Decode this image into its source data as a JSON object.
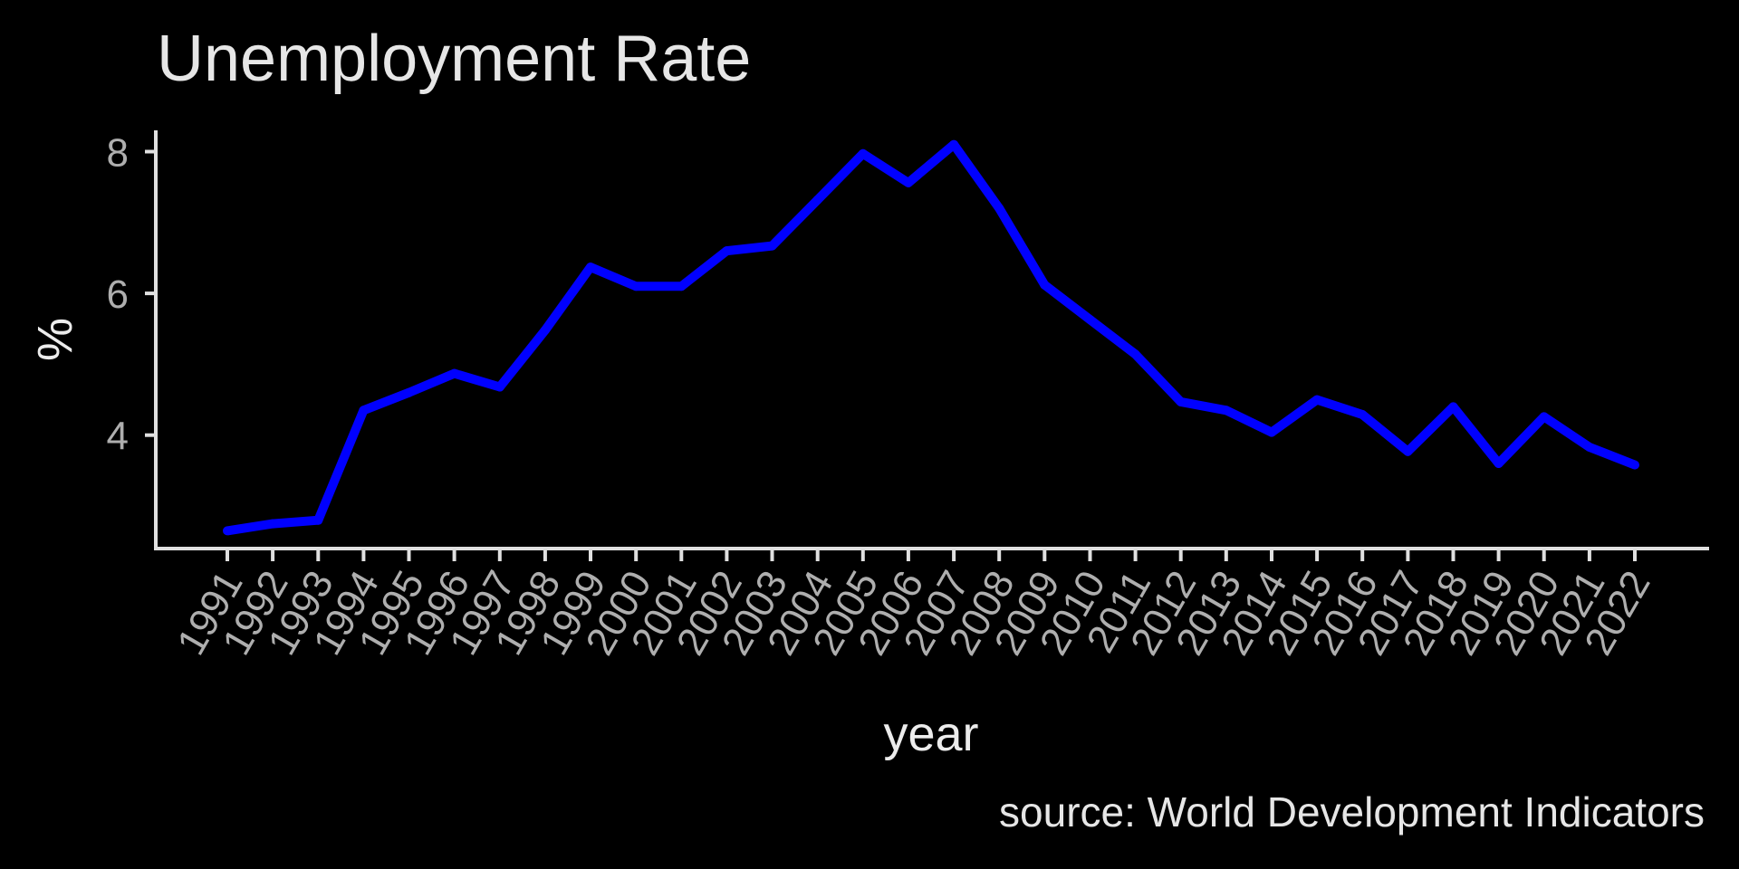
{
  "chart_data": {
    "type": "line",
    "title": "Unemployment Rate",
    "xlabel": "year",
    "ylabel": "%",
    "caption": "source: World Development Indicators",
    "x": [
      "1991",
      "1992",
      "1993",
      "1994",
      "1995",
      "1996",
      "1997",
      "1998",
      "1999",
      "2000",
      "2001",
      "2002",
      "2003",
      "2004",
      "2005",
      "2006",
      "2007",
      "2008",
      "2009",
      "2010",
      "2011",
      "2012",
      "2013",
      "2014",
      "2015",
      "2016",
      "2017",
      "2018",
      "2019",
      "2020",
      "2021",
      "2022"
    ],
    "series": [
      {
        "values": [
          2.65,
          2.75,
          2.8,
          4.35,
          4.6,
          4.87,
          4.68,
          5.48,
          6.37,
          6.1,
          6.1,
          6.6,
          6.67,
          7.32,
          7.97,
          7.56,
          8.1,
          7.2,
          6.12,
          5.63,
          5.14,
          4.47,
          4.35,
          4.04,
          4.5,
          4.29,
          3.77,
          4.4,
          3.6,
          4.26,
          3.83,
          3.58
        ],
        "color": "#0000ff"
      }
    ],
    "yticks": [
      4,
      6,
      8
    ],
    "ylim": [
      2.4,
      8.3
    ],
    "grid": false,
    "legend": "none",
    "colors": {
      "background": "#000000",
      "line": "#0000ff",
      "axis": "#e0e0e0",
      "tick_text": "#aeaeae",
      "title_text": "#e6e6e6"
    }
  }
}
